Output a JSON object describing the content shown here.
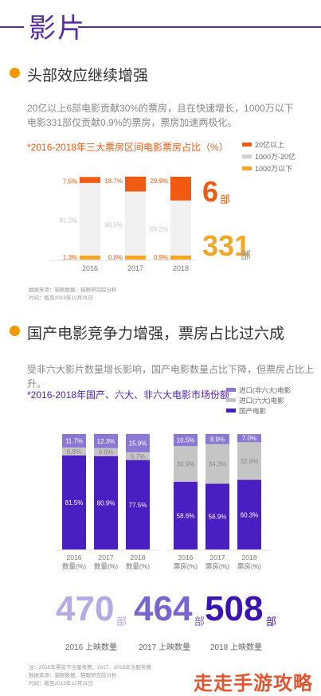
{
  "header": {
    "title": "影片"
  },
  "section1": {
    "title": "头部效应继续增强",
    "desc": "20亿以上6部电影贡献30%的票房，且在快速增长，1000万以下电影331部仅贡献0.9%的票房，票房加速两极化。",
    "chart_title": "*2016-2018年三大票房区间电影票房占比（%）",
    "big_top": "6",
    "big_top_unit": "部",
    "big_bottom": "331",
    "big_bottom_unit": "部",
    "source": [
      "数据来源：猫眼数据、猫眼研究院分析",
      "时间：截至2018年12月31日"
    ]
  },
  "section2": {
    "title": "国产电影竞争力增强，票房占比过六成",
    "desc": "受非六大影片数量增长影响，国产电影数量占比下降，但票房占比上升。",
    "chart_title": "*2016-2018年国产、六大、非六大电影市场份额",
    "counts": [
      {
        "num": "470",
        "unit": "部",
        "label": "2016 上映数量"
      },
      {
        "num": "464",
        "unit": "部",
        "label": "2017 上映数量"
      },
      {
        "num": "508",
        "unit": "部",
        "label": "2018 上映数量"
      }
    ],
    "source": [
      "注：2016年票房不含服务费，2017、2018年含服务费",
      "数据来源：猫眼数据、猫眼研究院分析",
      "时间：截至2018年12月31日"
    ]
  },
  "watermark": "走走手游攻略",
  "chart_data": [
    {
      "type": "bar",
      "stacked": true,
      "title": "*2016-2018年三大票房区间电影票房占比（%）",
      "categories": [
        "2016",
        "2017",
        "2018"
      ],
      "series": [
        {
          "name": "20亿以上",
          "color": "#f05a12",
          "values": [
            7.5,
            18.7,
            29.9
          ],
          "labels": [
            "7.5%",
            "18.7%",
            "29.9%"
          ]
        },
        {
          "name": "1000万-20亿",
          "color": "#f0f0f0",
          "values": [
            91.2,
            80.5,
            69.2
          ],
          "labels": [
            "91.2%",
            "80.5%",
            "69.2%"
          ]
        },
        {
          "name": "1000万以下",
          "color": "#f5a623",
          "values": [
            1.3,
            0.8,
            0.9
          ],
          "labels": [
            "1.3%",
            "0.8%",
            "0.9%"
          ]
        }
      ],
      "legend": "top-right"
    },
    {
      "type": "bar",
      "stacked": true,
      "title": "*2016-2018年国产、六大、非六大电影市场份额",
      "categories": [
        "2016\n数量(%)",
        "2017\n数量(%)",
        "2018\n数量(%)",
        "2016\n票房(%)",
        "2017\n票房(%)",
        "2018\n票房(%)"
      ],
      "series": [
        {
          "name": "国产电影",
          "color": "#4a1fc2",
          "values": [
            81.5,
            80.9,
            77.5,
            58.6,
            56.9,
            60.3
          ],
          "labels": [
            "81.5%",
            "80.9%",
            "77.5%",
            "58.6%",
            "56.9%",
            "60.3%"
          ]
        },
        {
          "name": "进口(六大)电影",
          "color": "#c5c5c5",
          "values": [
            6.8,
            6.9,
            6.7,
            30.9,
            34.3,
            32.6
          ],
          "labels": [
            "6.8%",
            "6.9%",
            "6.7%",
            "30.9%",
            "34.3%",
            "32.6%"
          ]
        },
        {
          "name": "进口(非六大)电影",
          "color": "#8a78d4",
          "values": [
            11.7,
            12.3,
            15.9,
            10.5,
            8.9,
            7.0
          ],
          "labels": [
            "11.7%",
            "12.3%",
            "15.9%",
            "10.5%",
            "8.9%",
            "7.0%"
          ]
        }
      ],
      "legend_order": [
        "进口(非六大)电影",
        "进口(六大)电影",
        "国产电影"
      ],
      "legend": "top-right"
    }
  ]
}
